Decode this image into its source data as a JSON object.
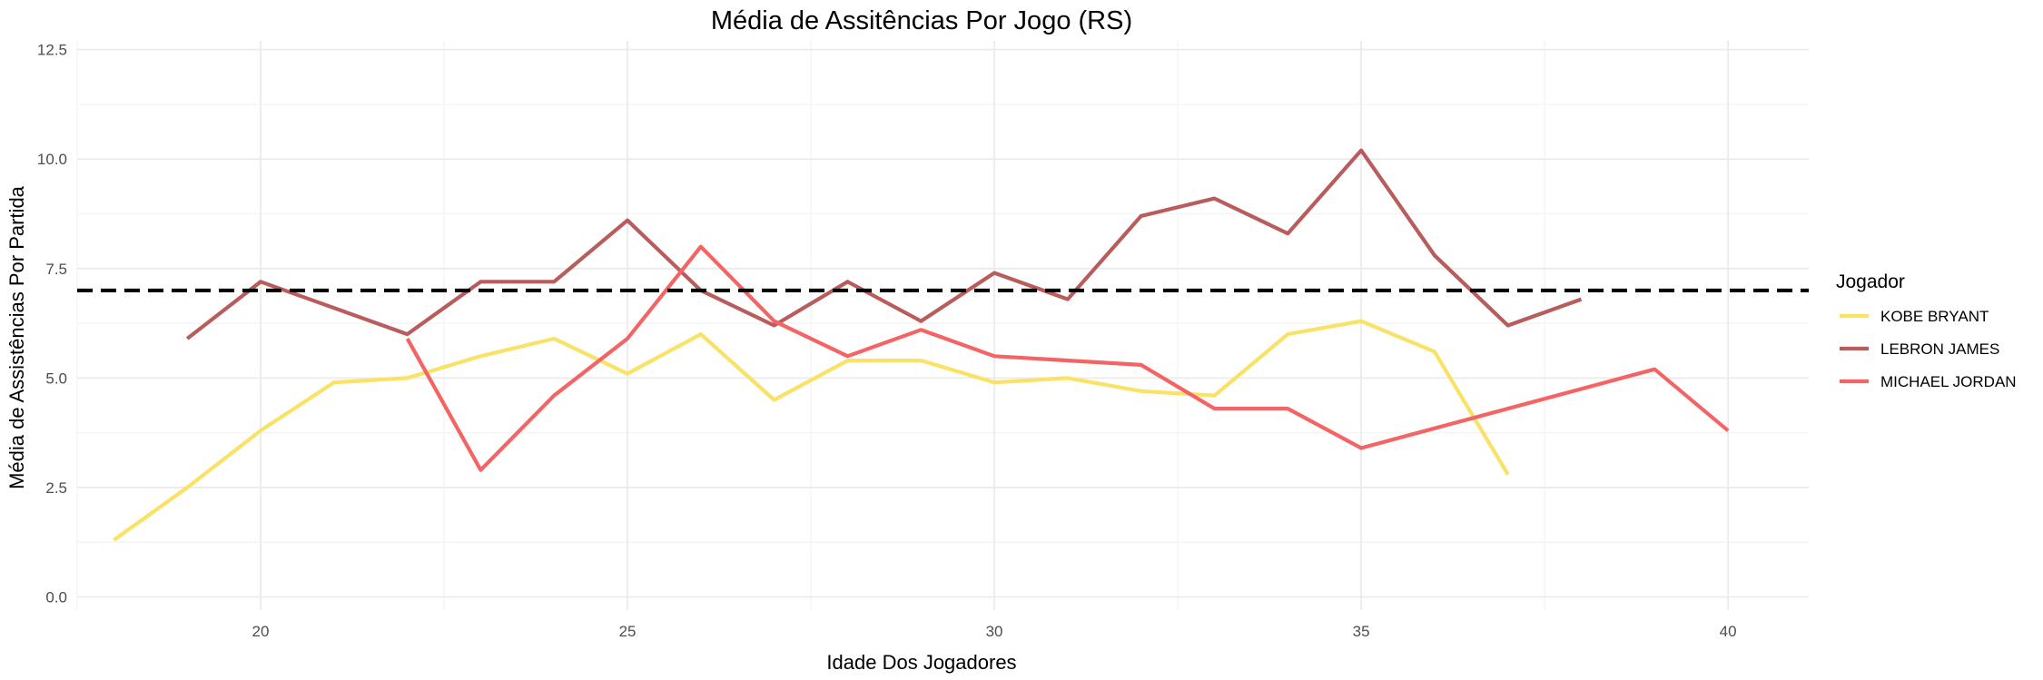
{
  "chart_data": {
    "type": "line",
    "title": "Média de Assitências Por Jogo (RS)",
    "xlabel": "Idade Dos Jogadores",
    "ylabel": "Média de Assistências Por Partida",
    "xlim": [
      17.5,
      41.1
    ],
    "ylim": [
      -0.3,
      12.7
    ],
    "x_ticks": [
      20,
      25,
      30,
      35,
      40
    ],
    "y_ticks": [
      0.0,
      2.5,
      5.0,
      7.5,
      10.0,
      12.5
    ],
    "x_tick_labels": [
      "20",
      "25",
      "30",
      "35",
      "40"
    ],
    "y_tick_labels": [
      "0.0",
      "2.5",
      "5.0",
      "7.5",
      "10.0",
      "12.5"
    ],
    "grid": true,
    "reference_line": {
      "y": 7.0,
      "style": "dashed",
      "color": "#000000"
    },
    "legend": {
      "title": "Jogador",
      "position": "right"
    },
    "series": [
      {
        "name": "KOBE BRYANT",
        "color": "#f9e265",
        "x": [
          18,
          19,
          20,
          21,
          22,
          23,
          24,
          25,
          26,
          27,
          28,
          29,
          30,
          31,
          32,
          33,
          34,
          35,
          36,
          37
        ],
        "y": [
          1.3,
          2.5,
          3.8,
          4.9,
          5.0,
          5.5,
          5.9,
          5.1,
          6.0,
          4.5,
          5.4,
          5.4,
          4.9,
          5.0,
          4.7,
          4.6,
          6.0,
          6.3,
          5.6,
          2.8
        ]
      },
      {
        "name": "LEBRON JAMES",
        "color": "#b85c5c",
        "x": [
          19,
          20,
          21,
          22,
          23,
          24,
          25,
          26,
          27,
          28,
          29,
          30,
          31,
          32,
          33,
          34,
          35,
          36,
          37,
          38
        ],
        "y": [
          5.9,
          7.2,
          6.6,
          6.0,
          7.2,
          7.2,
          8.6,
          7.0,
          6.2,
          7.2,
          6.3,
          7.4,
          6.8,
          8.7,
          9.1,
          8.3,
          10.2,
          7.8,
          6.2,
          6.8
        ]
      },
      {
        "name": "MICHAEL JORDAN",
        "color": "#f46464",
        "x": [
          22,
          23,
          24,
          25,
          26,
          27,
          28,
          29,
          30,
          32,
          33,
          34,
          35,
          39,
          40
        ],
        "y": [
          5.9,
          2.9,
          4.6,
          5.9,
          8.0,
          6.3,
          5.5,
          6.1,
          5.5,
          5.3,
          4.3,
          4.3,
          3.4,
          5.2,
          3.8
        ]
      }
    ]
  }
}
